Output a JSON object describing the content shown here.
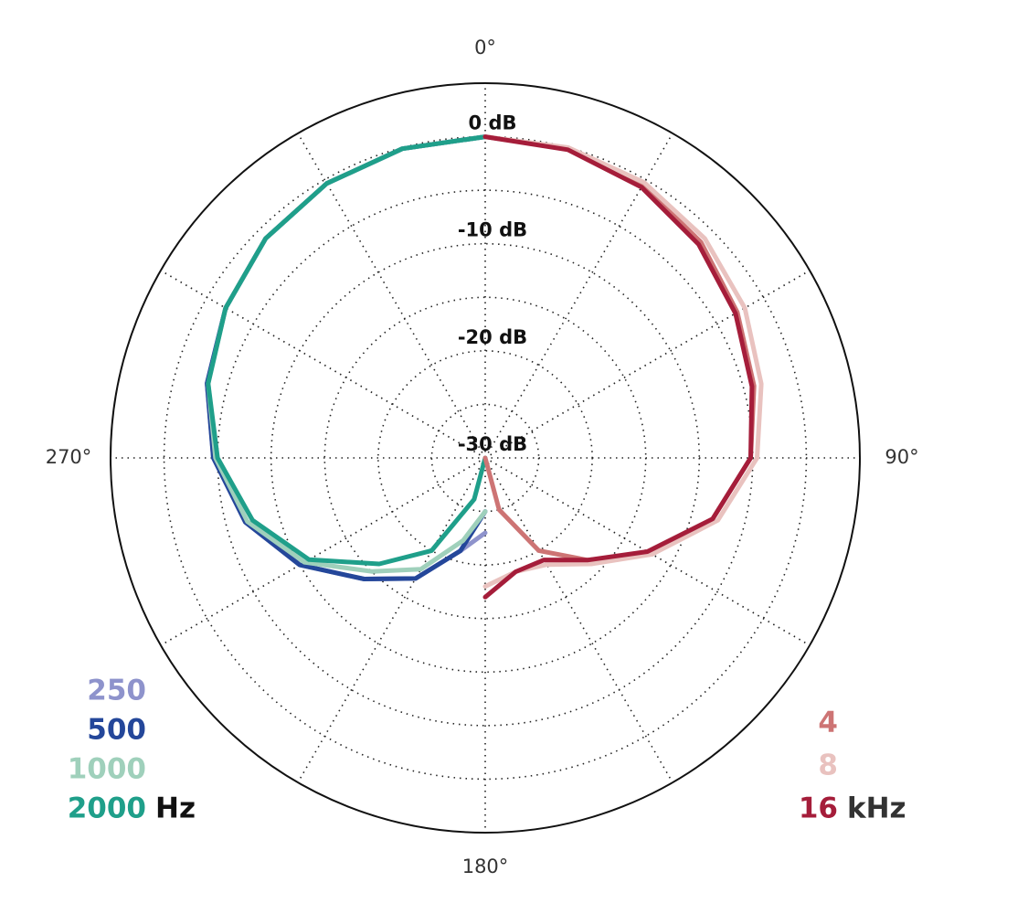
{
  "chart_data": {
    "type": "polar",
    "rlim": [
      -30,
      5
    ],
    "rticks": [
      {
        "value": 0,
        "label": "0 dB"
      },
      {
        "value": -10,
        "label": "-10 dB"
      },
      {
        "value": -20,
        "label": "-20 dB"
      },
      {
        "value": -30,
        "label": "-30 dB"
      }
    ],
    "rminorticks": [
      -25,
      -15,
      -5
    ],
    "thetaticks": [
      {
        "value": 0,
        "label": "0°"
      },
      {
        "value": 90,
        "label": "90°"
      },
      {
        "value": 180,
        "label": "180°"
      },
      {
        "value": 270,
        "label": "270°"
      }
    ],
    "thetagrid": [
      0,
      30,
      60,
      90,
      120,
      150,
      180,
      210,
      240,
      270,
      300,
      330
    ],
    "groups": [
      {
        "unit": "Hz",
        "legend": "lower left",
        "series": [
          {
            "name": "250",
            "color": "#8e93cc",
            "theta": [
              180,
              195,
              210,
              225,
              240,
              255,
              270,
              285,
              300,
              315,
              330,
              345,
              360
            ],
            "values": [
              -23,
              -21,
              -17,
              -14,
              -10,
              -6.8,
              -4.6,
              -3.1,
              -2,
              -1,
              -0.4,
              -0.1,
              0
            ]
          },
          {
            "name": "500",
            "color": "#24479a",
            "theta": [
              180,
              195,
              210,
              225,
              240,
              255,
              270,
              285,
              300,
              315,
              330,
              345,
              360
            ],
            "values": [
              -25,
              -21,
              -17,
              -14,
              -10,
              -6.8,
              -4.6,
              -3.1,
              -2,
              -1,
              -0.4,
              -0.1,
              0
            ]
          },
          {
            "name": "1000",
            "color": "#9fd0bb",
            "theta": [
              180,
              195,
              210,
              225,
              240,
              255,
              270,
              285,
              300,
              315,
              330,
              345,
              360
            ],
            "values": [
              -25,
              -22,
              -18,
              -15,
              -10.5,
              -7,
              -4.8,
              -3.2,
              -2,
              -1,
              -0.4,
              -0.1,
              0
            ]
          },
          {
            "name": "2000",
            "color": "#1f9f8a",
            "theta": [
              180,
              195,
              210,
              225,
              240,
              255,
              270,
              285,
              300,
              315,
              330,
              345,
              360
            ],
            "values": [
              -30,
              -26,
              -20,
              -16,
              -11,
              -7.5,
              -5,
              -3.2,
              -2,
              -1,
              -0.4,
              -0.1,
              0
            ]
          }
        ]
      },
      {
        "unit": "kHz",
        "legend": "lower right",
        "series": [
          {
            "name": "4",
            "color": "#cd7474",
            "theta": [
              0,
              15,
              30,
              45,
              60,
              75,
              90,
              105,
              120,
              135,
              150,
              165,
              180
            ],
            "values": [
              0,
              -0.1,
              -0.6,
              -1.5,
              -2.8,
              -4,
              -5.2,
              -8,
              -12,
              -16.5,
              -20,
              -25,
              -30
            ]
          },
          {
            "name": "8",
            "color": "#e9c2bf",
            "theta": [
              0,
              15,
              30,
              45,
              60,
              75,
              90,
              105,
              120,
              135,
              150,
              165,
              180
            ],
            "values": [
              0,
              0,
              -0.3,
              -1,
              -2,
              -3.3,
              -4.6,
              -7.5,
              -12,
              -16,
              -18.5,
              -19,
              -18
            ]
          },
          {
            "name": "16",
            "color": "#a51d3a",
            "theta": [
              0,
              15,
              30,
              45,
              60,
              75,
              90,
              105,
              120,
              135,
              150,
              165,
              180
            ],
            "values": [
              0,
              -0.2,
              -0.8,
              -1.8,
              -3,
              -4.2,
              -5.2,
              -8,
              -12.5,
              -16.5,
              -19,
              -19,
              -17
            ]
          }
        ]
      }
    ]
  }
}
